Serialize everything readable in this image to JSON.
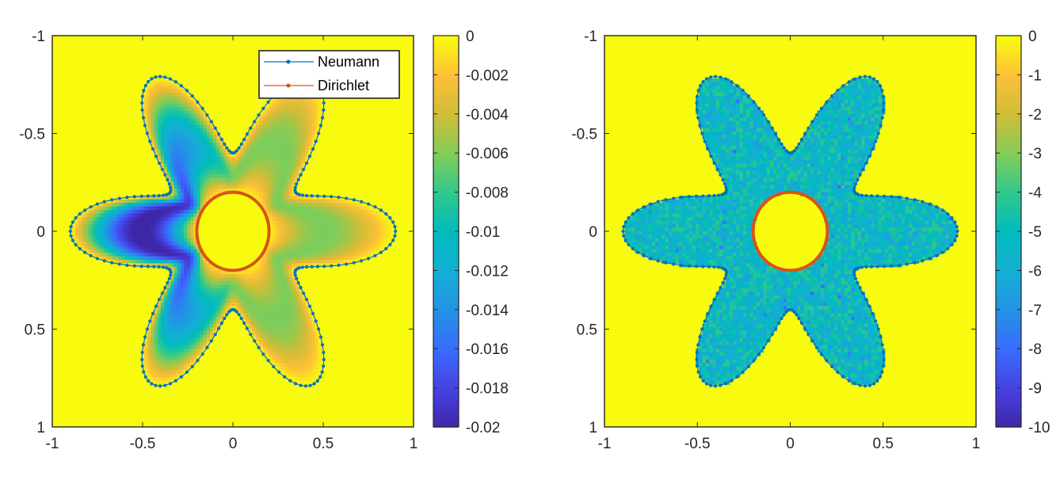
{
  "chart_data": [
    {
      "type": "heatmap",
      "title": "",
      "xlabel": "",
      "ylabel": "",
      "xlim": [
        -1,
        1
      ],
      "ylim": [
        -1,
        1
      ],
      "y_direction": "reverse",
      "xticks": [
        -1,
        -0.5,
        0,
        0.5,
        1
      ],
      "xtick_labels": [
        "-1",
        "-0.5",
        "0",
        "0.5",
        "1"
      ],
      "yticks": [
        -1,
        -0.5,
        0,
        0.5,
        1
      ],
      "ytick_labels": [
        "-1",
        "-0.5",
        "0",
        "0.5",
        "1"
      ],
      "colormap": "parula",
      "background_color": "#f9fb0e",
      "color_range": [
        -0.02,
        0
      ],
      "colorbar_ticks": [
        0,
        -0.002,
        -0.004,
        -0.006,
        -0.008,
        -0.01,
        -0.012,
        -0.014,
        -0.016,
        -0.018,
        -0.02
      ],
      "colorbar_labels": [
        "0",
        "-0.002",
        "-0.004",
        "-0.006",
        "-0.008",
        "-0.01",
        "-0.012",
        "-0.014",
        "-0.016",
        "-0.018",
        "-0.02"
      ],
      "field_description": "smooth field, minimum about -0.02 near (-0.35, 0), 0 on both boundaries",
      "legend": {
        "location": "top-right",
        "entries": [
          {
            "label": "Neumann",
            "color": "#0072bd"
          },
          {
            "label": "Dirichlet",
            "color": "#d95319"
          }
        ]
      },
      "series": [
        {
          "name": "Neumann",
          "kind": "outer boundary, 6-petal curve",
          "equation": "r = 0.65 + 0.25*cos(6*theta)",
          "center": [
            0,
            0
          ],
          "r_min": 0.4,
          "r_max": 0.9,
          "petals": 6,
          "color": "#0072bd"
        },
        {
          "name": "Dirichlet",
          "kind": "inner circle",
          "center": [
            0,
            0
          ],
          "radius": 0.2,
          "color": "#d95319"
        }
      ]
    },
    {
      "type": "heatmap",
      "title": "",
      "xlabel": "",
      "ylabel": "",
      "xlim": [
        -1,
        1
      ],
      "ylim": [
        -1,
        1
      ],
      "y_direction": "reverse",
      "xticks": [
        -1,
        -0.5,
        0,
        0.5,
        1
      ],
      "xtick_labels": [
        "-1",
        "-0.5",
        "0",
        "0.5",
        "1"
      ],
      "yticks": [
        -1,
        -0.5,
        0,
        0.5,
        1
      ],
      "ytick_labels": [
        "-1",
        "-0.5",
        "0",
        "0.5",
        "1"
      ],
      "colormap": "parula",
      "background_color": "#f9fb0e",
      "color_range": [
        -10,
        0
      ],
      "colorbar_ticks": [
        0,
        -1,
        -2,
        -3,
        -4,
        -5,
        -6,
        -7,
        -8,
        -9,
        -10
      ],
      "colorbar_labels": [
        "0",
        "-1",
        "-2",
        "-3",
        "-4",
        "-5",
        "-6",
        "-7",
        "-8",
        "-9",
        "-10"
      ],
      "field_description": "noisy field, values mostly -4 to -6 inside the domain, 0 outside and in the inner hole",
      "typical_value": -5,
      "noise_range": [
        -6.5,
        -4
      ],
      "series": [
        {
          "name": "Neumann",
          "kind": "outer boundary, 6-petal curve",
          "equation": "r = 0.65 + 0.25*cos(6*theta)",
          "center": [
            0,
            0
          ],
          "r_min": 0.4,
          "r_max": 0.9,
          "petals": 6,
          "color": "#0072bd"
        },
        {
          "name": "Dirichlet",
          "kind": "inner circle",
          "center": [
            0,
            0
          ],
          "radius": 0.2,
          "color": "#d95319"
        }
      ]
    }
  ]
}
